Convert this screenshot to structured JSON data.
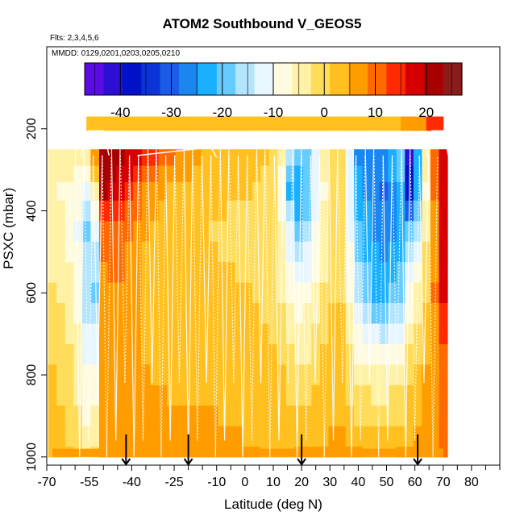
{
  "title": "ATOM2 Southbound V_GEOS5",
  "flights_text": "Flts: 2,3,4,5,6",
  "dates_text": "MMDD: 0129,0201,0203,0205,0210",
  "colors": {
    "palette": [
      "#5b0ce6",
      "#2b0fd3",
      "#0012c9",
      "#0b34d8",
      "#1b5ce6",
      "#1a86f0",
      "#19b0ff",
      "#66ccff",
      "#b3e5ff",
      "#e8f6ff",
      "#fffbe0",
      "#fff2a6",
      "#ffdc5a",
      "#ffc020",
      "#ff9d00",
      "#ff6a00",
      "#ff2a00",
      "#d60000",
      "#a80000",
      "#8c1c1c"
    ],
    "track": "#ffffff",
    "arrow": "#000000"
  },
  "chart_data": {
    "type": "heatmap",
    "title": "ATOM2 Southbound V_GEOS5",
    "xlabel": "Latitude (deg N)",
    "ylabel": "PSXC (mbar)",
    "xlim": [
      -70,
      90
    ],
    "ylim": [
      1020,
      0
    ],
    "x_ticks": [
      -70,
      -55,
      -40,
      -25,
      -10,
      0,
      10,
      20,
      30,
      40,
      50,
      60,
      70,
      80
    ],
    "x_tick_labels": [
      "-70",
      "-55",
      "-40",
      "-25",
      "-10",
      "0",
      "10",
      "20",
      "30",
      "40",
      "50",
      "60",
      "70",
      "80"
    ],
    "x_minor_ticks": [
      -65,
      -60,
      -50,
      -45,
      -35,
      -30,
      -20,
      -15,
      -5,
      5,
      15,
      25,
      35,
      45,
      55,
      65,
      75,
      85,
      90
    ],
    "y_ticks": [
      200,
      400,
      600,
      800,
      1000
    ],
    "y_tick_labels": [
      "200",
      "400",
      "600",
      "800",
      "1000"
    ],
    "colorbar": {
      "range": [
        -47,
        27
      ],
      "ticks": [
        -40,
        -30,
        -20,
        -10,
        0,
        10,
        20
      ],
      "tick_labels": [
        "-40",
        "-30",
        "-20",
        "-10",
        "0",
        "10",
        "20"
      ]
    },
    "pressure_levels": [
      180,
      200,
      230,
      270,
      310,
      350,
      400,
      450,
      500,
      550,
      600,
      650,
      700,
      750,
      800,
      850,
      900,
      950,
      1000
    ],
    "latitude_bins": [
      -68,
      -65,
      -62,
      -59,
      -56,
      -53,
      -50,
      -47,
      -44,
      -41,
      -38,
      -35,
      -32,
      -29,
      -26,
      -23,
      -20,
      -17,
      -14,
      -11,
      -8,
      -5,
      -2,
      1,
      4,
      7,
      10,
      13,
      16,
      19,
      22,
      25,
      28,
      31,
      34,
      37,
      40,
      43,
      46,
      49,
      52,
      55,
      58,
      61,
      64,
      67,
      70
    ],
    "anchor_latitudes": [
      -68,
      -60,
      -56,
      -53,
      -50,
      -45,
      -42,
      -35,
      -25,
      -12,
      5,
      12,
      15,
      20,
      27,
      33,
      40,
      48,
      55,
      58,
      62,
      66,
      70
    ],
    "anchor_levels": [
      200,
      270,
      350,
      450,
      600,
      800,
      1000
    ],
    "anchor_values_by_level": [
      [
        22,
        15,
        5,
        -4,
        18,
        25,
        25,
        20,
        13,
        6,
        4,
        3,
        2,
        4,
        5,
        6,
        6,
        6,
        7,
        9,
        11,
        14,
        17
      ],
      [
        -5,
        -4,
        -6,
        8,
        22,
        23,
        20,
        14,
        8,
        4,
        3,
        0,
        -14,
        -22,
        -6,
        3,
        -25,
        -28,
        -18,
        -40,
        -18,
        8,
        18
      ],
      [
        -6,
        -8,
        -12,
        -4,
        20,
        18,
        14,
        8,
        4,
        2,
        1,
        -4,
        -20,
        -26,
        -8,
        2,
        -24,
        -30,
        -22,
        -38,
        -20,
        6,
        18
      ],
      [
        -4,
        -8,
        -18,
        -12,
        10,
        12,
        10,
        5,
        3,
        1,
        0,
        -3,
        -12,
        -20,
        -6,
        2,
        -20,
        -28,
        -24,
        -20,
        -12,
        5,
        16
      ],
      [
        -2,
        -6,
        -16,
        -18,
        6,
        9,
        7,
        4,
        3,
        2,
        1,
        -1,
        -6,
        -10,
        -3,
        3,
        -14,
        -24,
        -18,
        -10,
        -4,
        6,
        16
      ],
      [
        2,
        -2,
        -10,
        -8,
        6,
        7,
        6,
        5,
        4,
        4,
        3,
        2,
        0,
        -2,
        2,
        4,
        -4,
        -6,
        -3,
        1,
        3,
        7,
        10
      ],
      [
        3,
        1,
        -4,
        -2,
        6,
        6,
        6,
        7,
        6,
        6,
        5,
        4,
        4,
        5,
        5,
        6,
        5,
        4,
        5,
        6,
        7,
        8,
        9
      ]
    ],
    "top_band": {
      "lat_range": [
        -56,
        70
      ],
      "pressure_range": [
        170,
        205
      ],
      "description": "light yellow row with orange to red near 60-70N"
    },
    "arrow_latitudes": [
      -42,
      -20,
      20,
      61
    ],
    "profile_count": 40
  }
}
